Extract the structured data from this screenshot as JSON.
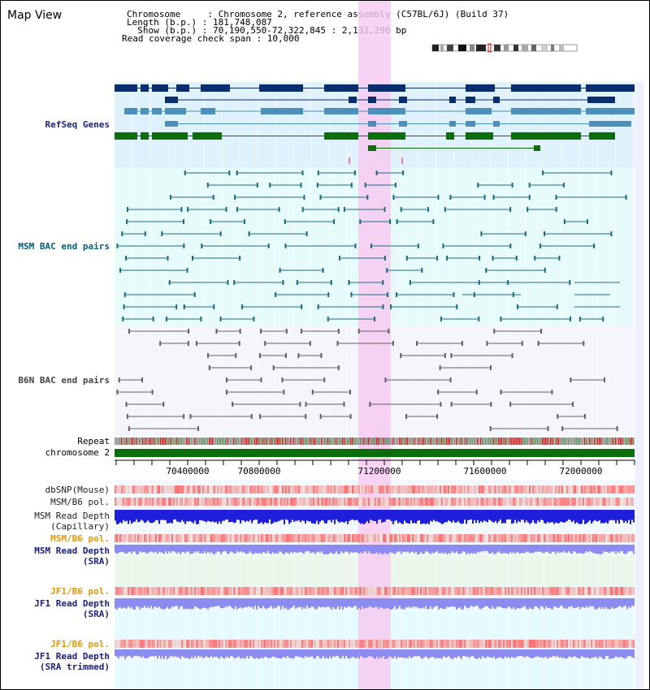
{
  "title": "Map View",
  "info": {
    "line1": "Chromosome     : Chromosome 2, reference assembly (C57BL/6J) (Build 37)",
    "line2": "Length (b.p.) : 181,748,087",
    "line3": "  Show (b.p.) : 70,190,550-72,322,845 : 2,132,296 bp",
    "line4": "Read coverage check span : 10,000"
  },
  "axis_ticks": [
    "70400000",
    "70800000",
    "71200000",
    "71600000",
    "72000000"
  ],
  "tracks": {
    "refseq": "RefSeq Genes",
    "msm_bac": "MSM BAC end pairs",
    "b6n_bac": "B6N BAC end pairs",
    "repeat": "Repeat",
    "chromosome": "chromosome 2",
    "dbsnp": "dbSNP(Mouse)",
    "msm_b6_pol_1": "MSM/B6 pol.",
    "msm_read_depth_cap_1": "MSM Read Depth",
    "msm_read_depth_cap_2": "(Capillary)",
    "msm_b6_pol_2": "MSM/B6 pol.",
    "msm_read_depth_sra_1": "MSM Read Depth",
    "msm_read_depth_sra_2": "(SRA)",
    "jf1_b6_pol_1": "JF1/B6 pol.",
    "jf1_read_depth_sra_1": "JF1 Read Depth",
    "jf1_read_depth_sra_2": "(SRA)",
    "jf1_b6_pol_2": "JF1/B6 pol.",
    "jf1_read_depth_trim_1": "JF1 Read Depth",
    "jf1_read_depth_trim_2": "(SRA trimmed)"
  },
  "colors": {
    "refseq_bg": "#dff2fb",
    "gene_dark": "#0a2d6e",
    "gene_mid": "#4a90b8",
    "gene_green": "#0a6e0a",
    "msm_bac": "#1a6a80",
    "b6n_bac": "#606060",
    "highlight": "#f7c8f0",
    "depth_blue": "#1e1edc",
    "depth_light": "#8c8cf0",
    "label_navy": "#1a237e",
    "label_orange": "#e69500",
    "label_teal": "#00607a"
  }
}
